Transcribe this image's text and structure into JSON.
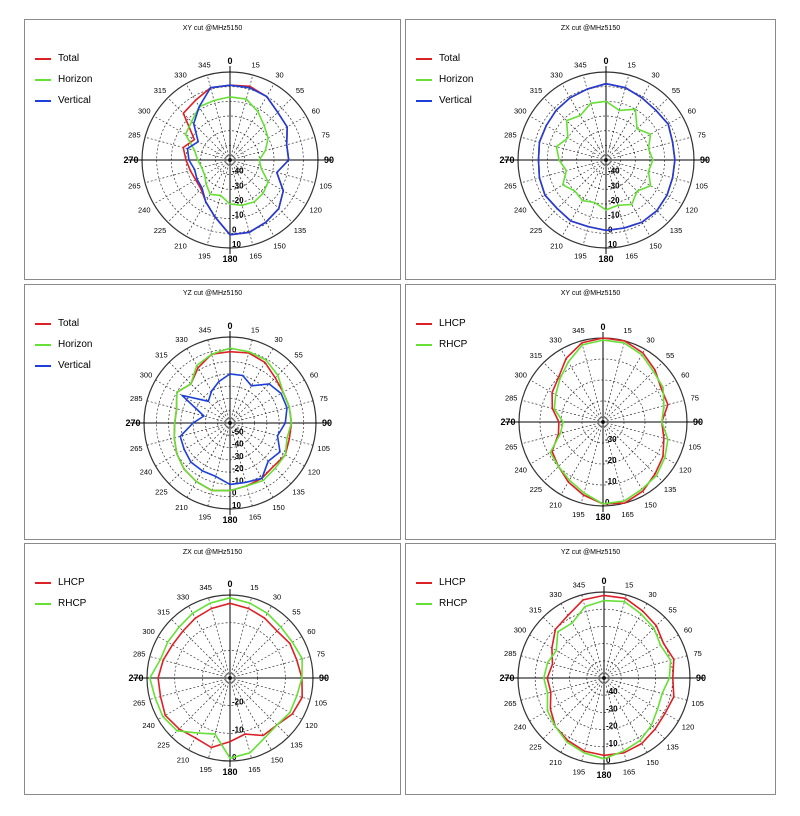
{
  "page": {
    "background": "#ffffff",
    "border_color": "#8a8a8a"
  },
  "style": {
    "grid_color": "#333333",
    "colors": {
      "Total": "#dd1f26",
      "Horizon": "#66e035",
      "Vertical": "#1b3fd8",
      "LHCP": "#dd1f26",
      "RHCP": "#66e035"
    }
  },
  "chart_data": [
    {
      "type": "polar-line",
      "title": "XY cut @MHz5150",
      "theta_ticks": [
        "0",
        "15",
        "30",
        "55",
        "60",
        "75",
        "90",
        "105",
        "120",
        "135",
        "150",
        "165",
        "180",
        "195",
        "210",
        "225",
        "240",
        "265",
        "270",
        "285",
        "300",
        "315",
        "330",
        "345"
      ],
      "r_ticks": [
        "-40",
        "-30",
        "-20",
        "-10",
        "0",
        "10"
      ],
      "r_range": [
        -50,
        10
      ],
      "series": [
        {
          "name": "Total",
          "color": "#dd1f26",
          "r": [
            1,
            2,
            0,
            -4,
            -5,
            -10,
            -10,
            -17,
            -8,
            -3,
            -1,
            1,
            1,
            -10,
            -17,
            -22,
            -23,
            -22,
            -20,
            -17,
            -22,
            -5,
            -3,
            1
          ]
        },
        {
          "name": "Horizon",
          "color": "#66e035",
          "r": [
            -7,
            -7,
            -12,
            -17,
            -20,
            -25,
            -30,
            -28,
            -20,
            -18,
            -17,
            -18,
            -20,
            -25,
            -23,
            -27,
            -30,
            -30,
            -28,
            -25,
            -15,
            -13,
            -8,
            -8
          ]
        },
        {
          "name": "Vertical",
          "color": "#1b3fd8",
          "r": [
            1,
            1,
            0,
            -4,
            -5,
            -10,
            -10,
            -17,
            -8,
            -3,
            -1,
            1,
            1,
            -10,
            -17,
            -23,
            -24,
            -25,
            -22,
            -20,
            -25,
            -15,
            -8,
            1
          ]
        }
      ]
    },
    {
      "type": "polar-line",
      "title": "ZX cut @MHz5150",
      "theta_ticks": [
        "0",
        "15",
        "30",
        "55",
        "60",
        "75",
        "90",
        "105",
        "120",
        "135",
        "150",
        "165",
        "180",
        "195",
        "210",
        "225",
        "240",
        "265",
        "270",
        "285",
        "300",
        "315",
        "330",
        "345"
      ],
      "r_ticks": [
        "-40",
        "-30",
        "-20",
        "-10",
        "0",
        "10"
      ],
      "r_range": [
        -50,
        10
      ],
      "series": [
        {
          "name": "Total",
          "color": "#dd1f26",
          "r": [
            2,
            1,
            -1,
            -2,
            -1,
            -3,
            -3,
            -3,
            -2,
            -1,
            -1,
            -2,
            -2,
            -3,
            -2,
            -3,
            -2,
            -3,
            -4,
            -3,
            -3,
            -2,
            -1,
            0
          ]
        },
        {
          "name": "Horizon",
          "color": "#66e035",
          "r": [
            -10,
            -15,
            -10,
            -20,
            -15,
            -20,
            -18,
            -20,
            -15,
            -20,
            -15,
            -18,
            -16,
            -20,
            -18,
            -20,
            -16,
            -22,
            -18,
            -15,
            -20,
            -12,
            -15,
            -10
          ]
        },
        {
          "name": "Vertical",
          "color": "#1b3fd8",
          "r": [
            2,
            1,
            -1,
            -2,
            -1,
            -3,
            -3,
            -3,
            -2,
            -1,
            -1,
            -2,
            -2,
            -3,
            -2,
            -3,
            -2,
            -3,
            -4,
            -3,
            -3,
            -2,
            -1,
            0
          ]
        }
      ]
    },
    {
      "type": "polar-line",
      "title": "YZ cut @MHz5150",
      "theta_ticks": [
        "0",
        "15",
        "30",
        "55",
        "60",
        "75",
        "90",
        "105",
        "120",
        "135",
        "150",
        "165",
        "180",
        "195",
        "210",
        "225",
        "240",
        "265",
        "270",
        "285",
        "300",
        "315",
        "330",
        "345"
      ],
      "r_ticks": [
        "-50",
        "-40",
        "-30",
        "-20",
        "-10",
        "0",
        "10"
      ],
      "r_range": [
        -60,
        10
      ],
      "series": [
        {
          "name": "Total",
          "color": "#dd1f26",
          "r": [
            -2,
            -1,
            -3,
            -8,
            -10,
            -10,
            -10,
            -10,
            -8,
            -10,
            -8,
            -7,
            -5,
            -3,
            -5,
            -7,
            -10,
            -13,
            -15,
            -15,
            -10,
            -15,
            -8,
            -2
          ]
        },
        {
          "name": "Horizon",
          "color": "#66e035",
          "r": [
            1,
            0,
            -1,
            -5,
            -10,
            -10,
            -10,
            -12,
            -8,
            -8,
            -6,
            -7,
            -5,
            -3,
            -5,
            -7,
            -10,
            -13,
            -15,
            -15,
            -10,
            -15,
            -6,
            -2
          ]
        },
        {
          "name": "Vertical",
          "color": "#1b3fd8",
          "r": [
            -20,
            -20,
            -25,
            -15,
            -12,
            -12,
            -15,
            -20,
            -13,
            -16,
            -8,
            -10,
            -10,
            -15,
            -15,
            -15,
            -17,
            -18,
            -30,
            -38,
            -15,
            -35,
            -30,
            -25
          ]
        }
      ]
    },
    {
      "type": "polar-line",
      "title": "XY cut @MHz5150",
      "theta_ticks": [
        "0",
        "15",
        "30",
        "55",
        "60",
        "75",
        "90",
        "105",
        "120",
        "135",
        "150",
        "165",
        "180",
        "195",
        "210",
        "225",
        "240",
        "265",
        "270",
        "285",
        "300",
        "315",
        "330",
        "345"
      ],
      "r_ticks": [
        "-30",
        "-20",
        "-10",
        "0"
      ],
      "r_range": [
        -40,
        0
      ],
      "series": [
        {
          "name": "LHCP",
          "color": "#dd1f26",
          "r": [
            0,
            0,
            -2,
            -5,
            -8,
            -8,
            -12,
            -10,
            -7,
            -5,
            -2,
            0,
            -1,
            -4,
            -7,
            -10,
            -12,
            -18,
            -19,
            -15,
            -12,
            -10,
            -5,
            -1
          ]
        },
        {
          "name": "RHCP",
          "color": "#66e035",
          "r": [
            -1,
            -1,
            -3,
            -6,
            -7,
            -10,
            -12,
            -8,
            -6,
            -4,
            -3,
            -1,
            -1,
            -5,
            -8,
            -10,
            -11,
            -19,
            -21,
            -16,
            -14,
            -11,
            -7,
            -2
          ]
        }
      ]
    },
    {
      "type": "polar-line",
      "title": "ZX cut @MHz5150",
      "theta_ticks": [
        "0",
        "15",
        "30",
        "55",
        "60",
        "75",
        "90",
        "105",
        "120",
        "135",
        "150",
        "165",
        "180",
        "195",
        "210",
        "225",
        "240",
        "265",
        "270",
        "285",
        "300",
        "315",
        "330",
        "345"
      ],
      "r_ticks": [
        "-20",
        "-10",
        "0"
      ],
      "r_range": [
        -30,
        0
      ],
      "series": [
        {
          "name": "LHCP",
          "color": "#dd1f26",
          "r": [
            -3,
            -4,
            -5,
            -6,
            -5,
            -5,
            -4,
            -3,
            -4,
            -6,
            -6,
            -9,
            -7,
            -4,
            -5,
            -4,
            -3,
            -4,
            -4,
            -5,
            -6,
            -6,
            -5,
            -4
          ]
        },
        {
          "name": "RHCP",
          "color": "#66e035",
          "r": [
            -1,
            -2,
            -3,
            -4,
            -4,
            -3,
            -4,
            -5,
            -5,
            -6,
            -5,
            -2,
            -1,
            -9,
            -7,
            -3,
            -2,
            -2,
            -1,
            -4,
            -4,
            -4,
            -3,
            -2
          ]
        }
      ]
    },
    {
      "type": "polar-line",
      "title": "YZ cut @MHz5150",
      "theta_ticks": [
        "0",
        "15",
        "30",
        "55",
        "60",
        "75",
        "90",
        "105",
        "120",
        "135",
        "150",
        "165",
        "180",
        "195",
        "210",
        "225",
        "240",
        "265",
        "270",
        "285",
        "300",
        "315",
        "330",
        "345"
      ],
      "r_ticks": [
        "-40",
        "-30",
        "-20",
        "-10",
        "0"
      ],
      "r_range": [
        -50,
        0
      ],
      "series": [
        {
          "name": "LHCP",
          "color": "#dd1f26",
          "r": [
            -2,
            -2,
            -5,
            -7,
            -10,
            -8,
            -10,
            -8,
            -9,
            -8,
            -6,
            -5,
            -5,
            -6,
            -8,
            -10,
            -14,
            -18,
            -17,
            -19,
            -15,
            -10,
            -8,
            -3
          ]
        },
        {
          "name": "RHCP",
          "color": "#66e035",
          "r": [
            -5,
            -4,
            -7,
            -9,
            -12,
            -10,
            -12,
            -15,
            -14,
            -11,
            -8,
            -6,
            -3,
            -5,
            -7,
            -10,
            -12,
            -16,
            -15,
            -16,
            -18,
            -12,
            -13,
            -7
          ]
        }
      ]
    }
  ]
}
